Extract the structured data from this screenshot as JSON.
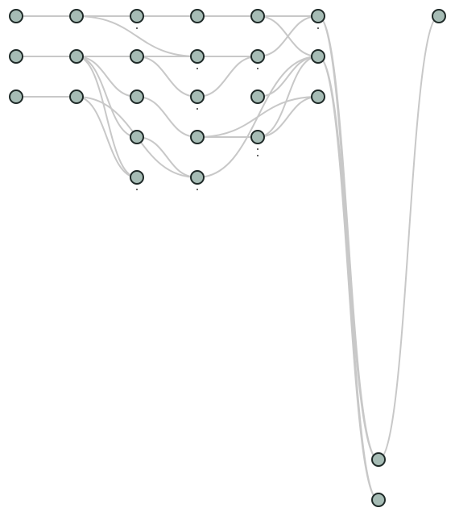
{
  "colors": {
    "node_fill": "#a6bcb5",
    "node_stroke": "#1f2a28",
    "edge": "#c8c8c8",
    "background": "#ffffff"
  },
  "graph": {
    "nodes": [
      {
        "id": "c0r0"
      },
      {
        "id": "c0r1"
      },
      {
        "id": "c0r2"
      },
      {
        "id": "c1r0"
      },
      {
        "id": "c1r1"
      },
      {
        "id": "c1r2"
      },
      {
        "id": "c2r0"
      },
      {
        "id": "c2r1"
      },
      {
        "id": "c2r2"
      },
      {
        "id": "c2r3"
      },
      {
        "id": "c2r4"
      },
      {
        "id": "c3r0"
      },
      {
        "id": "c3r1"
      },
      {
        "id": "c3r2"
      },
      {
        "id": "c3r3"
      },
      {
        "id": "c3r4"
      },
      {
        "id": "c4r0"
      },
      {
        "id": "c4r1"
      },
      {
        "id": "c4r2"
      },
      {
        "id": "c4r3"
      },
      {
        "id": "c5r0"
      },
      {
        "id": "c5r1"
      },
      {
        "id": "c5r2"
      },
      {
        "id": "c6a"
      },
      {
        "id": "c6b"
      },
      {
        "id": "c7r0"
      }
    ],
    "edges": [
      {
        "from": "c0r0",
        "to": "c1r0"
      },
      {
        "from": "c0r1",
        "to": "c1r1"
      },
      {
        "from": "c0r2",
        "to": "c1r2"
      },
      {
        "from": "c1r0",
        "to": "c2r0"
      },
      {
        "from": "c1r0",
        "to": "c3r1"
      },
      {
        "from": "c1r1",
        "to": "c2r1"
      },
      {
        "from": "c1r1",
        "to": "c2r2"
      },
      {
        "from": "c1r1",
        "to": "c2r3"
      },
      {
        "from": "c1r1",
        "to": "c2r4"
      },
      {
        "from": "c1r2",
        "to": "c2r4"
      },
      {
        "from": "c1r2",
        "to": "c3r4"
      },
      {
        "from": "c2r0",
        "to": "c3r0"
      },
      {
        "from": "c2r1",
        "to": "c3r2"
      },
      {
        "from": "c2r1",
        "to": "c4r1"
      },
      {
        "from": "c2r2",
        "to": "c3r3"
      },
      {
        "from": "c2r3",
        "to": "c3r4"
      },
      {
        "from": "c3r0",
        "to": "c4r0"
      },
      {
        "from": "c3r1",
        "to": "c4r1"
      },
      {
        "from": "c3r2",
        "to": "c4r1"
      },
      {
        "from": "c3r3",
        "to": "c4r3"
      },
      {
        "from": "c3r3",
        "to": "c5r2"
      },
      {
        "from": "c3r4",
        "to": "c5r1"
      },
      {
        "from": "c4r0",
        "to": "c5r0"
      },
      {
        "from": "c4r0",
        "to": "c5r1"
      },
      {
        "from": "c4r1",
        "to": "c5r0"
      },
      {
        "from": "c4r2",
        "to": "c5r1"
      },
      {
        "from": "c4r3",
        "to": "c5r1"
      },
      {
        "from": "c4r3",
        "to": "c5r2"
      },
      {
        "from": "c5r0",
        "to": "c6a"
      },
      {
        "from": "c5r0",
        "to": "c6b"
      },
      {
        "from": "c5r1",
        "to": "c6a"
      },
      {
        "from": "c5r1",
        "to": "c6b"
      },
      {
        "from": "c6a",
        "to": "c7r0"
      }
    ]
  }
}
